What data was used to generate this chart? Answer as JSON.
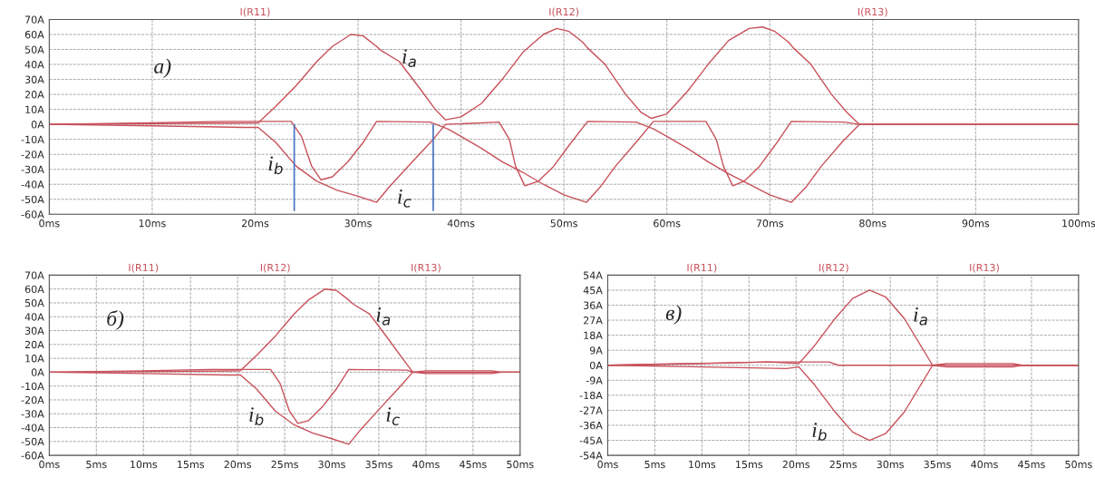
{
  "chart_data": [
    {
      "type": "line",
      "grid": true,
      "xlim": [
        0,
        100
      ],
      "ylim": [
        -60,
        70
      ],
      "xticks": [
        {
          "value": 0,
          "label": "0ms"
        },
        {
          "value": 10,
          "label": "10ms"
        },
        {
          "value": 20,
          "label": "20ms"
        },
        {
          "value": 30,
          "label": "30ms"
        },
        {
          "value": 40,
          "label": "40ms"
        },
        {
          "value": 50,
          "label": "50ms"
        },
        {
          "value": 60,
          "label": "60ms"
        },
        {
          "value": 70,
          "label": "70ms"
        },
        {
          "value": 80,
          "label": "80ms"
        },
        {
          "value": 90,
          "label": "90ms"
        },
        {
          "value": 100,
          "label": "100ms"
        }
      ],
      "yticks": [
        {
          "value": -60,
          "label": "-60A"
        },
        {
          "value": -50,
          "label": "-50A"
        },
        {
          "value": -40,
          "label": "-40A"
        },
        {
          "value": -30,
          "label": "-30A"
        },
        {
          "value": -20,
          "label": "-20A"
        },
        {
          "value": -10,
          "label": "-10A"
        },
        {
          "value": 0,
          "label": "0A"
        },
        {
          "value": 10,
          "label": "10A"
        },
        {
          "value": 20,
          "label": "20A"
        },
        {
          "value": 30,
          "label": "30A"
        },
        {
          "value": 40,
          "label": "40A"
        },
        {
          "value": 50,
          "label": "50A"
        },
        {
          "value": 60,
          "label": "60A"
        },
        {
          "value": 70,
          "label": "70A"
        }
      ],
      "series": [
        {
          "color": "#c8505a",
          "x": [
            0,
            20.3,
            22,
            24,
            26,
            27.5,
            29.3,
            30.5,
            31.8,
            32.3,
            34,
            36,
            37.5,
            38.5,
            40,
            42,
            44,
            46,
            48,
            49.3,
            50.5,
            51.8,
            52.3,
            54,
            56,
            57.5,
            58.5,
            60,
            62,
            64,
            66,
            68,
            69.3,
            70.5,
            71.8,
            72.3,
            74,
            76,
            77.5,
            78.7,
            85,
            100
          ],
          "values": [
            0,
            1,
            12,
            26,
            42,
            52,
            60,
            59,
            52,
            49,
            42,
            24,
            10,
            3,
            5,
            14,
            30,
            48,
            60,
            64,
            62,
            55,
            51,
            40,
            20,
            8,
            4,
            7,
            22,
            40,
            56,
            64,
            65,
            62,
            55,
            51,
            40,
            20,
            8,
            0,
            0,
            0
          ]
        },
        {
          "color": "#c8505a",
          "x": [
            0,
            10,
            17,
            23.5,
            24.5,
            25.5,
            26.4,
            27.5,
            29,
            30.5,
            31.8,
            37,
            38.7,
            40,
            42,
            44,
            46,
            48,
            50,
            52.2,
            53.5,
            55,
            57,
            58.7,
            63.8,
            64.8,
            65.5,
            66.4,
            67.5,
            69,
            70.5,
            72.1,
            77.2,
            78.7,
            100
          ],
          "values": [
            0,
            1,
            2,
            2,
            -8,
            -28,
            -37,
            -35,
            -25,
            -12,
            2,
            1.5,
            -3,
            -8,
            -16,
            -25,
            -32,
            -40,
            -47,
            -52,
            -42,
            -28,
            -12,
            2,
            2,
            -10,
            -28,
            -41,
            -38,
            -28,
            -14,
            2,
            1.5,
            0,
            0
          ]
        },
        {
          "color": "#c8505a",
          "x": [
            0,
            10,
            19,
            20.3,
            22,
            24,
            26,
            28,
            30,
            31.8,
            33,
            35,
            37.3,
            38.5,
            43.7,
            44.7,
            45.3,
            46.2,
            47.5,
            49,
            50.5,
            52.3,
            57,
            58.7,
            60,
            62,
            64,
            66,
            68,
            70,
            72.1,
            73.5,
            75,
            77,
            78.7,
            100
          ],
          "values": [
            0,
            -1,
            -2,
            -2,
            -12,
            -28,
            -38,
            -44,
            -48,
            -52,
            -42,
            -27,
            -10,
            0,
            1.5,
            -10,
            -28,
            -41,
            -38,
            -28,
            -14,
            2,
            1.5,
            -3,
            -8,
            -16,
            -25,
            -33,
            -40,
            -47,
            -52,
            -42,
            -28,
            -12,
            0,
            0
          ]
        }
      ],
      "ref_lines": [
        {
          "axis": "x",
          "value": 23.8,
          "color": "#4472c4"
        },
        {
          "axis": "x",
          "value": 37.3,
          "color": "#4472c4"
        }
      ],
      "annotations": [
        "I(R11)",
        "I(R12)",
        "I(R13)",
        "a)",
        "i$_{a}$",
        "i$_{b}$",
        "i$_{c}$"
      ]
    },
    {
      "type": "line",
      "grid": true,
      "xlim": [
        0,
        50
      ],
      "ylim": [
        -60,
        70
      ],
      "xticks": [
        {
          "value": 0,
          "label": "0ms"
        },
        {
          "value": 5,
          "label": "5ms"
        },
        {
          "value": 10,
          "label": "10ms"
        },
        {
          "value": 15,
          "label": "15ms"
        },
        {
          "value": 20,
          "label": "20ms"
        },
        {
          "value": 25,
          "label": "25ms"
        },
        {
          "value": 30,
          "label": "30ms"
        },
        {
          "value": 35,
          "label": "35ms"
        },
        {
          "value": 40,
          "label": "40ms"
        },
        {
          "value": 45,
          "label": "45ms"
        },
        {
          "value": 50,
          "label": "50ms"
        }
      ],
      "yticks": [
        {
          "value": -60,
          "label": "-60A"
        },
        {
          "value": -50,
          "label": "-50A"
        },
        {
          "value": -40,
          "label": "-40A"
        },
        {
          "value": -30,
          "label": "-30A"
        },
        {
          "value": -20,
          "label": "-20A"
        },
        {
          "value": -10,
          "label": "-10A"
        },
        {
          "value": 0,
          "label": "0A"
        },
        {
          "value": 10,
          "label": "10A"
        },
        {
          "value": 20,
          "label": "20A"
        },
        {
          "value": 30,
          "label": "30A"
        },
        {
          "value": 40,
          "label": "40A"
        },
        {
          "value": 50,
          "label": "50A"
        },
        {
          "value": 60,
          "label": "60A"
        },
        {
          "value": 70,
          "label": "70A"
        }
      ],
      "series": [
        {
          "color": "#c8505a",
          "x": [
            0,
            20.3,
            22,
            24,
            26,
            27.5,
            29.3,
            30.5,
            31.8,
            32.3,
            34,
            36,
            37.5,
            38.6,
            40,
            47,
            48,
            50
          ],
          "values": [
            0,
            1,
            12,
            26,
            42,
            52,
            60,
            59,
            52,
            49,
            42,
            24,
            10,
            0,
            1,
            1,
            0,
            0
          ]
        },
        {
          "color": "#c8505a",
          "x": [
            0,
            10,
            17,
            23.5,
            24.5,
            25.5,
            26.4,
            27.5,
            29,
            30.5,
            31.8,
            38,
            38.6,
            50
          ],
          "values": [
            0,
            1,
            2,
            2,
            -8,
            -28,
            -37,
            -35,
            -25,
            -12,
            2,
            1.5,
            0,
            0
          ]
        },
        {
          "color": "#c8505a",
          "x": [
            0,
            10,
            19,
            20.3,
            22,
            24,
            26,
            28,
            30,
            31.8,
            33,
            35,
            37.3,
            38.6,
            40,
            47,
            48,
            50
          ],
          "values": [
            0,
            -1,
            -2,
            -2,
            -12,
            -28,
            -38,
            -44,
            -48,
            -52,
            -42,
            -27,
            -10,
            0,
            -1,
            -1,
            0,
            0
          ]
        }
      ],
      "annotations": [
        "I(R11)",
        "I(R12)",
        "I(R13)",
        "б)",
        "i$_{a}$",
        "i$_{b}$",
        "i$_{c}$"
      ]
    },
    {
      "type": "line",
      "grid": true,
      "xlim": [
        0,
        50
      ],
      "ylim": [
        -54,
        54
      ],
      "xticks": [
        {
          "value": 0,
          "label": "0ms"
        },
        {
          "value": 5,
          "label": "5ms"
        },
        {
          "value": 10,
          "label": "10ms"
        },
        {
          "value": 15,
          "label": "15ms"
        },
        {
          "value": 20,
          "label": "20ms"
        },
        {
          "value": 25,
          "label": "25ms"
        },
        {
          "value": 30,
          "label": "30ms"
        },
        {
          "value": 35,
          "label": "35ms"
        },
        {
          "value": 40,
          "label": "40ms"
        },
        {
          "value": 45,
          "label": "45ms"
        },
        {
          "value": 50,
          "label": "50ms"
        }
      ],
      "yticks": [
        {
          "value": -54,
          "label": "-54A"
        },
        {
          "value": -45,
          "label": "-45A"
        },
        {
          "value": -36,
          "label": "-36A"
        },
        {
          "value": -27,
          "label": "-27A"
        },
        {
          "value": -18,
          "label": "-18A"
        },
        {
          "value": -9,
          "label": "-9A"
        },
        {
          "value": 0,
          "label": "0A"
        },
        {
          "value": 9,
          "label": "9A"
        },
        {
          "value": 18,
          "label": "18A"
        },
        {
          "value": 27,
          "label": "27A"
        },
        {
          "value": 36,
          "label": "36A"
        },
        {
          "value": 45,
          "label": "45A"
        },
        {
          "value": 54,
          "label": "54A"
        }
      ],
      "series": [
        {
          "color": "#c8505a",
          "x": [
            0,
            10,
            17,
            20.3,
            22,
            24,
            26,
            27.8,
            29.5,
            31.5,
            33,
            34.5,
            36,
            43,
            44,
            50
          ],
          "values": [
            0,
            1,
            2,
            1,
            12,
            27,
            40,
            45,
            41,
            28,
            14,
            0,
            1,
            1,
            0,
            0
          ]
        },
        {
          "color": "#c8505a",
          "x": [
            0,
            10,
            19,
            20.3,
            22,
            24,
            26,
            27.8,
            29.5,
            31.5,
            33,
            34.5,
            36,
            43,
            44,
            50
          ],
          "values": [
            0,
            -1,
            -2,
            -1,
            -12,
            -27,
            -40,
            -45,
            -41,
            -28,
            -14,
            0,
            -1,
            -1,
            0,
            0
          ]
        },
        {
          "color": "#c8505a",
          "x": [
            0,
            17,
            23.5,
            24.5,
            50
          ],
          "values": [
            0,
            2,
            2,
            0,
            0
          ]
        }
      ],
      "annotations": [
        "I(R11)",
        "I(R12)",
        "I(R13)",
        "в)",
        "i$_{a}$",
        "i$_{b}$"
      ]
    }
  ]
}
